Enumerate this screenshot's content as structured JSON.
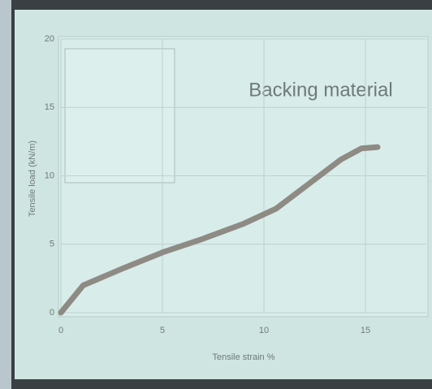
{
  "chart_data": {
    "type": "line",
    "title": "Backing material",
    "x_label": "Tensile strain %",
    "y_label": "Tensile load (kN/m)",
    "x": [
      0,
      1.1,
      3,
      5,
      7,
      9,
      10.6,
      12.2,
      13.8,
      14.8,
      15.6
    ],
    "values": [
      0,
      2,
      3.2,
      4.4,
      5.4,
      6.5,
      7.6,
      9.4,
      11.2,
      12,
      12.1
    ],
    "color": "#8e8a84",
    "xlim": [
      0,
      18
    ],
    "xticks": [
      0,
      5,
      10,
      15
    ],
    "ylim": [
      0,
      20
    ],
    "yticks": [
      0,
      5,
      10,
      15,
      20
    ],
    "grid": true
  }
}
